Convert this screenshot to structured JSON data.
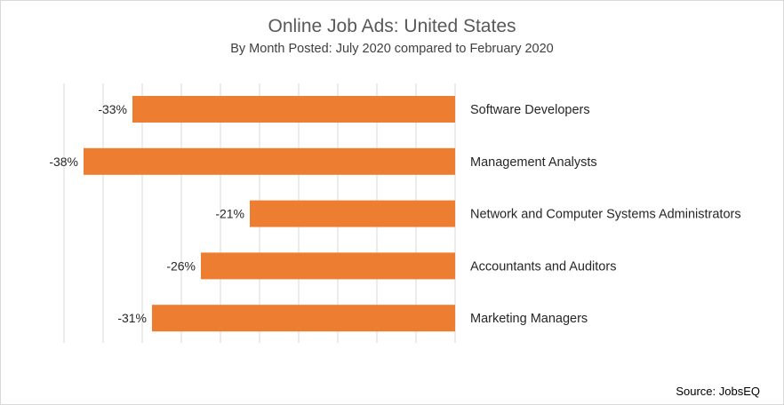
{
  "chart_data": {
    "type": "bar",
    "orientation": "horizontal",
    "title": "Online Job Ads: United States",
    "subtitle": "By Month Posted: July 2020 compared to February 2020",
    "categories": [
      "Software Developers",
      "Management Analysts",
      "Network and Computer Systems Administrators",
      "Accountants and Auditors",
      "Marketing Managers"
    ],
    "values": [
      -33,
      -38,
      -21,
      -26,
      -31
    ],
    "data_labels": [
      "-33%",
      "-38%",
      "-21%",
      "-26%",
      "-31%"
    ],
    "xlim": [
      -38,
      0
    ],
    "grid": true,
    "bar_color": "#ED7D31",
    "source": "Source: JobsEQ"
  }
}
